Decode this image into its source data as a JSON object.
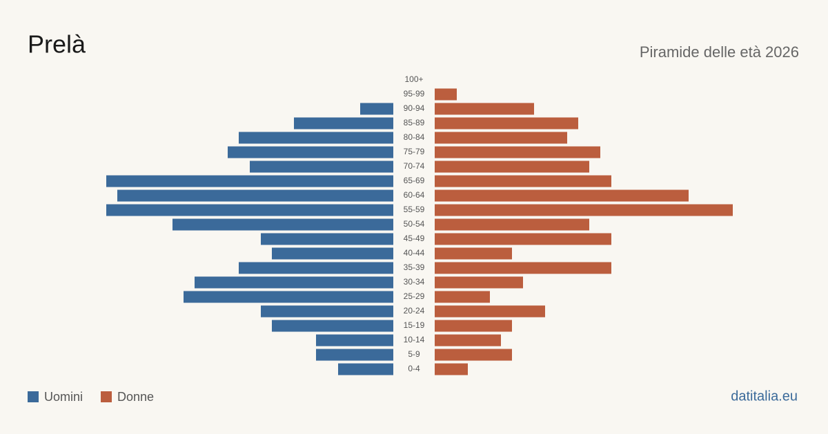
{
  "chart_data": {
    "type": "pyramid",
    "title": "Prelà",
    "subtitle": "Piramide delle età 2026",
    "source": "datitalia.eu",
    "categories": [
      "100+",
      "95-99",
      "90-94",
      "85-89",
      "80-84",
      "75-79",
      "70-74",
      "65-69",
      "60-64",
      "55-59",
      "50-54",
      "45-49",
      "40-44",
      "35-39",
      "30-34",
      "25-29",
      "20-24",
      "15-19",
      "10-14",
      "5-9",
      "0-4"
    ],
    "series": [
      {
        "name": "Uomini",
        "color": "#3b6a9a",
        "values": [
          0,
          0,
          3,
          9,
          14,
          15,
          13,
          26,
          25,
          26,
          20,
          12,
          11,
          14,
          18,
          19,
          12,
          11,
          7,
          7,
          5
        ]
      },
      {
        "name": "Donne",
        "color": "#bb5e3e",
        "values": [
          0,
          2,
          9,
          13,
          12,
          15,
          14,
          16,
          23,
          27,
          14,
          16,
          7,
          16,
          8,
          5,
          10,
          7,
          6,
          7,
          3
        ]
      }
    ]
  }
}
